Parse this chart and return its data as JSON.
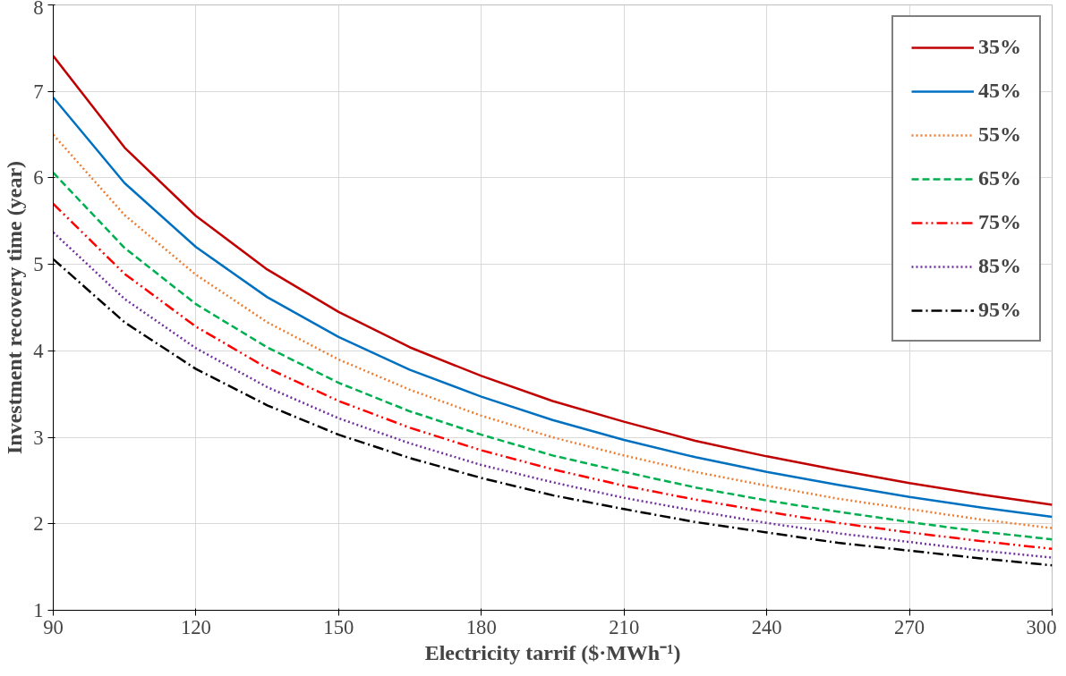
{
  "chart_data": {
    "type": "line",
    "xlabel": "Electricity tarrif ($·MWh⁻¹)",
    "ylabel": "Investment recovery time (year)",
    "x": [
      90,
      105,
      120,
      135,
      150,
      165,
      180,
      195,
      210,
      225,
      240,
      255,
      270,
      285,
      300
    ],
    "xlim": [
      90,
      300
    ],
    "xticks": [
      90,
      120,
      150,
      180,
      210,
      240,
      270,
      300
    ],
    "ylim": [
      1,
      8
    ],
    "yticks": [
      1,
      2,
      3,
      4,
      5,
      6,
      7,
      8
    ],
    "grid": true,
    "legend": "top right",
    "series": [
      {
        "name": "35%",
        "color": "#c00000",
        "line_style": "solid",
        "values": [
          7.41,
          6.35,
          5.56,
          4.94,
          4.45,
          4.04,
          3.71,
          3.42,
          3.18,
          2.96,
          2.78,
          2.62,
          2.47,
          2.34,
          2.22
        ]
      },
      {
        "name": "45%",
        "color": "#0070c0",
        "line_style": "solid",
        "values": [
          6.93,
          5.94,
          5.2,
          4.62,
          4.16,
          3.78,
          3.47,
          3.2,
          2.97,
          2.77,
          2.6,
          2.45,
          2.31,
          2.19,
          2.08
        ]
      },
      {
        "name": "55%",
        "color": "#ed7d31",
        "line_style": "dotted",
        "values": [
          6.5,
          5.57,
          4.88,
          4.33,
          3.9,
          3.55,
          3.25,
          3.0,
          2.79,
          2.6,
          2.44,
          2.29,
          2.17,
          2.05,
          1.95
        ]
      },
      {
        "name": "65%",
        "color": "#00b050",
        "line_style": "dashed",
        "values": [
          6.06,
          5.19,
          4.54,
          4.04,
          3.63,
          3.3,
          3.03,
          2.79,
          2.6,
          2.42,
          2.27,
          2.14,
          2.02,
          1.91,
          1.82
        ]
      },
      {
        "name": "75%",
        "color": "#ff0000",
        "line_style": "dashdotdot",
        "values": [
          5.7,
          4.89,
          4.28,
          3.8,
          3.42,
          3.11,
          2.85,
          2.63,
          2.44,
          2.28,
          2.14,
          2.01,
          1.9,
          1.8,
          1.71
        ]
      },
      {
        "name": "85%",
        "color": "#7030a0",
        "line_style": "dotted",
        "values": [
          5.37,
          4.6,
          4.03,
          3.58,
          3.22,
          2.93,
          2.68,
          2.48,
          2.3,
          2.15,
          2.01,
          1.89,
          1.79,
          1.69,
          1.61
        ]
      },
      {
        "name": "95%",
        "color": "#000000",
        "line_style": "dashdot",
        "values": [
          5.06,
          4.33,
          3.79,
          3.37,
          3.03,
          2.76,
          2.53,
          2.33,
          2.17,
          2.02,
          1.9,
          1.78,
          1.69,
          1.6,
          1.52
        ]
      }
    ]
  }
}
